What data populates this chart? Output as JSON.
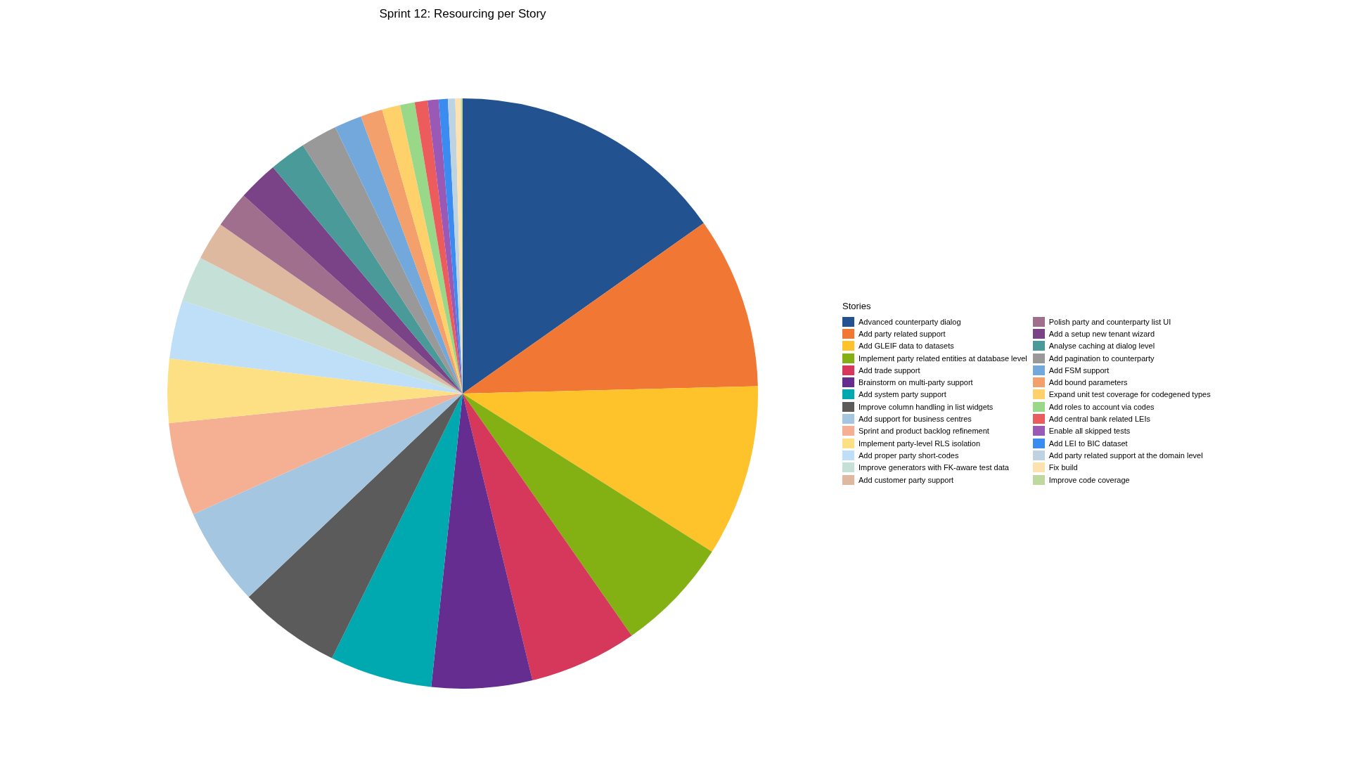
{
  "chart_data": {
    "type": "pie",
    "title": "Sprint 12: Resourcing per Story",
    "legend_title": "Stories",
    "legend": "right",
    "categories": [
      "Advanced counterparty dialog",
      "Add party related support",
      "Add GLEIF data to datasets",
      "Implement party related entities at database level",
      "Add trade support",
      "Brainstorm on multi-party support",
      "Add system party support",
      "Improve column handling in list widgets",
      "Add support for business centres",
      "Sprint and product backlog refinement",
      "Implement party-level RLS isolation",
      "Add proper party short-codes",
      "Improve generators with FK-aware test data",
      "Add customer party support",
      "Polish party and counterparty list UI",
      "Add a setup new tenant wizard",
      "Analyse caching at dialog level",
      "Add pagination to counterparty",
      "Add FSM support",
      "Add bound parameters",
      "Expand unit test coverage for codegened types",
      "Add roles to account via codes",
      "Add central bank related LEIs",
      "Enable all skipped tests",
      "Add LEI to BIC dataset",
      "Add party related support at the domain level",
      "Fix build",
      "Improve code coverage"
    ],
    "values": [
      15.2,
      9.4,
      9.4,
      6.3,
      5.9,
      5.5,
      5.6,
      5.6,
      5.4,
      5.1,
      3.5,
      3.2,
      2.5,
      2.1,
      2.0,
      2.2,
      2.0,
      2.0,
      1.5,
      1.2,
      1.0,
      0.8,
      0.7,
      0.6,
      0.5,
      0.4,
      0.3,
      0.1
    ],
    "colors": [
      "#22528f",
      "#f07834",
      "#fec32a",
      "#83b013",
      "#d6385b",
      "#652d90",
      "#00a8b0",
      "#5b5b5b",
      "#a4c6e0",
      "#f5b094",
      "#fde084",
      "#bfdff8",
      "#c5e0d6",
      "#dfb8a0",
      "#a06f8d",
      "#7a4388",
      "#4a9a9a",
      "#999999",
      "#72a8dc",
      "#f4a06c",
      "#fed16a",
      "#98d888",
      "#ec5c5c",
      "#9b59b6",
      "#3a8cf0",
      "#bed3e2",
      "#fde2b0",
      "#bed9a0"
    ]
  }
}
